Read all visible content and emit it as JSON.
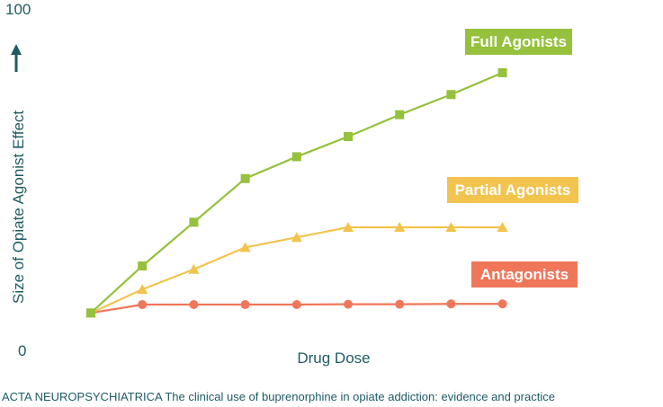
{
  "chart_data": {
    "type": "line",
    "x": [
      1,
      2,
      3,
      4,
      5,
      6,
      7,
      8,
      9
    ],
    "xlabel": "Drug Dose",
    "ylabel": "Size of Opiate Agonist Effect",
    "ylim": [
      0,
      100
    ],
    "yticks": [
      "0",
      "100"
    ],
    "grid": false,
    "series": [
      {
        "name": "Full Agonists",
        "marker": "square",
        "color": "#95c13d",
        "values": [
          9,
          23,
          36,
          49,
          55.5,
          61.5,
          68,
          74,
          80.5
        ]
      },
      {
        "name": "Partial Agonists",
        "marker": "triangle",
        "color": "#f2c44e",
        "values": [
          9,
          16,
          22,
          28.5,
          31.5,
          34.5,
          34.5,
          34.5,
          34.5
        ]
      },
      {
        "name": "Antagonists",
        "marker": "circle",
        "color": "#f0765a",
        "values": [
          9,
          11.5,
          11.5,
          11.5,
          11.5,
          11.6,
          11.6,
          11.7,
          11.7
        ]
      }
    ]
  },
  "caption": {
    "journal": "ACTA NEUROPSYCHIATRICA",
    "text": "The clinical use of buprenorphine in opiate addiction: evidence and practice"
  }
}
